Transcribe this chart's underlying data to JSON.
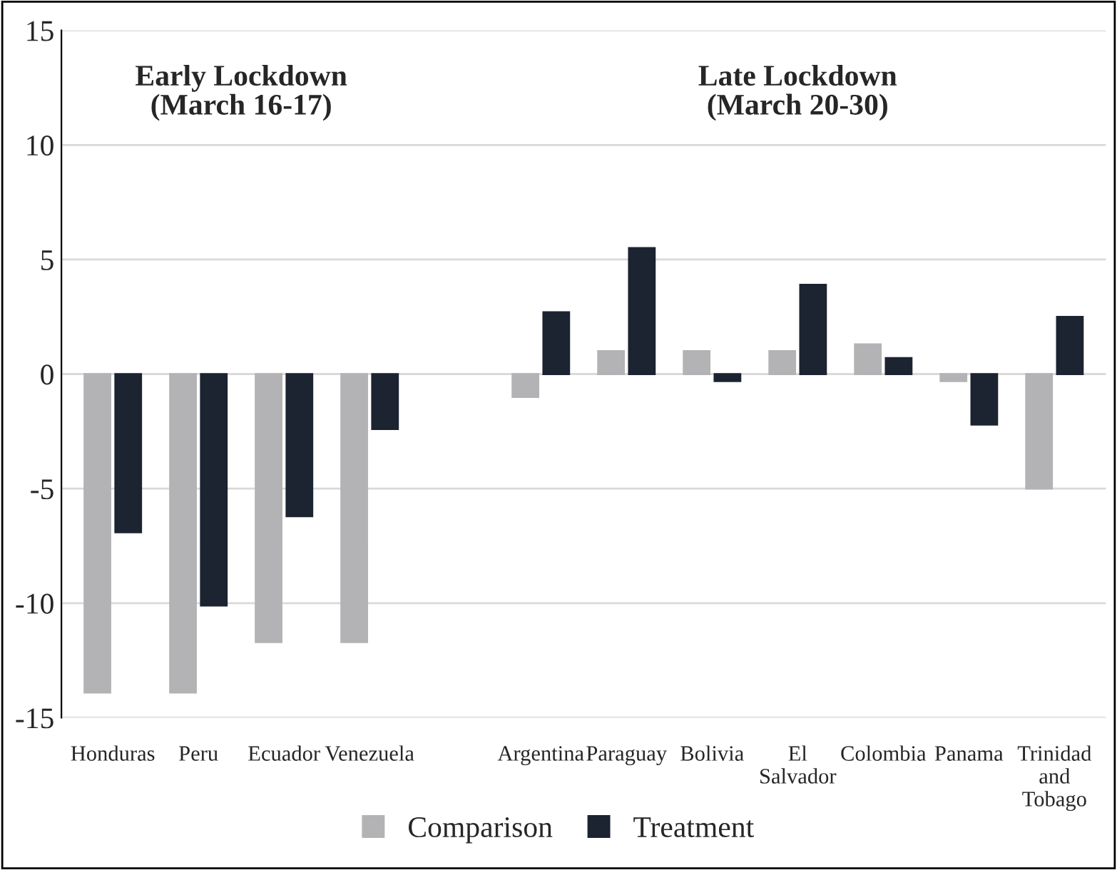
{
  "chart_data": {
    "type": "bar",
    "categories": [
      "Honduras",
      "Peru",
      "Ecuador",
      "Venezuela",
      null,
      "Argentina",
      "Paraguay",
      "Bolivia",
      "El Salvador",
      "Colombia",
      "Panama",
      "Trinidad and Tobago"
    ],
    "series": [
      {
        "name": "Comparison",
        "color": "#b3b3b5",
        "values": [
          -13.9,
          -13.9,
          -11.7,
          -11.7,
          null,
          -1.0,
          1.0,
          1.0,
          1.0,
          1.3,
          -0.3,
          -5.0
        ]
      },
      {
        "name": "Treatment",
        "color": "#1c2331",
        "values": [
          -6.9,
          -10.1,
          -6.2,
          -2.4,
          null,
          2.7,
          5.5,
          -0.3,
          3.9,
          0.7,
          -2.2,
          2.5
        ]
      }
    ],
    "ylim": [
      -15,
      15
    ],
    "yticks": [
      -15,
      -10,
      -5,
      0,
      5,
      10,
      15
    ],
    "grid": "y",
    "legend": "bottom",
    "annotations": [
      "Early Lockdown\n(March 16-17)",
      "Late Lockdown\n(March 20-30)"
    ]
  }
}
